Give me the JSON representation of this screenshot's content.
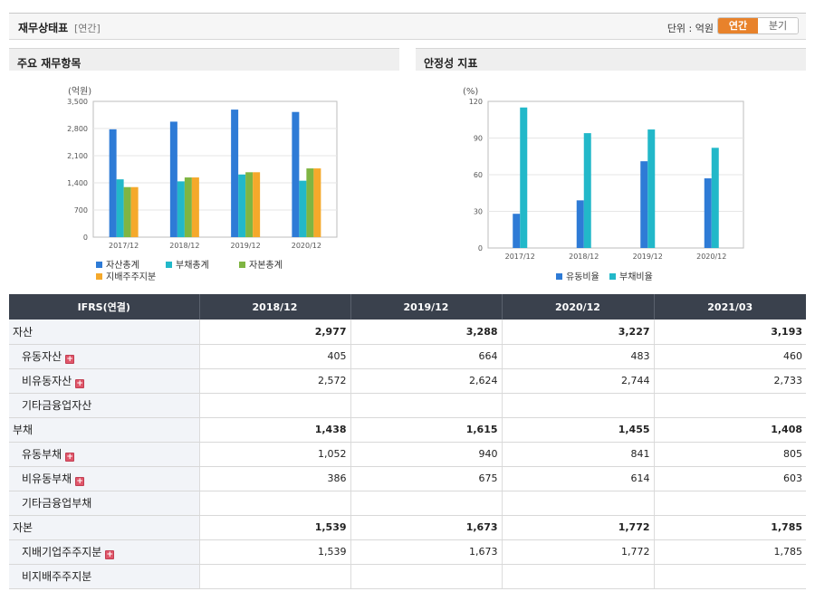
{
  "header": {
    "title": "재무상태표",
    "period_tag": "[연간]",
    "unit_label": "단위 : 억원",
    "toggle": {
      "annual": "연간",
      "quarter": "분기"
    }
  },
  "panels": {
    "left_title": "주요 재무항목",
    "right_title": "안정성 지표"
  },
  "colors": {
    "assets": "#2e7bd6",
    "liabilities": "#22b8c9",
    "equity": "#7fb542",
    "controlling": "#f5a92b",
    "header_bg": "#3a414d",
    "accent": "#e8822b"
  },
  "chart_data": [
    {
      "type": "bar",
      "title": "주요 재무항목",
      "ylabel": "(억원)",
      "categories": [
        "2017/12",
        "2018/12",
        "2019/12",
        "2020/12"
      ],
      "ylim": [
        0,
        3500
      ],
      "yticks": [
        0,
        700,
        1400,
        2100,
        2800,
        3500
      ],
      "ytick_labels": [
        "0",
        "700",
        "1,400",
        "2,100",
        "2,800",
        "3,500"
      ],
      "grid": true,
      "legend_position": "bottom",
      "series": [
        {
          "name": "자산총계",
          "color": "#2e7bd6",
          "values": [
            2780,
            2977,
            3288,
            3227
          ]
        },
        {
          "name": "부채총계",
          "color": "#22b8c9",
          "values": [
            1490,
            1438,
            1615,
            1455
          ]
        },
        {
          "name": "자본총계",
          "color": "#7fb542",
          "values": [
            1290,
            1539,
            1673,
            1772
          ]
        },
        {
          "name": "지배주주지분",
          "color": "#f5a92b",
          "values": [
            1290,
            1539,
            1673,
            1772
          ]
        }
      ]
    },
    {
      "type": "bar",
      "title": "안정성 지표",
      "ylabel": "(%)",
      "categories": [
        "2017/12",
        "2018/12",
        "2019/12",
        "2020/12"
      ],
      "ylim": [
        0,
        120
      ],
      "yticks": [
        0,
        30,
        60,
        90,
        120
      ],
      "ytick_labels": [
        "0",
        "30",
        "60",
        "90",
        "120"
      ],
      "grid": true,
      "legend_position": "bottom",
      "series": [
        {
          "name": "유동비율",
          "color": "#2e7bd6",
          "values": [
            28,
            39,
            71,
            57
          ]
        },
        {
          "name": "부채비율",
          "color": "#22b8c9",
          "values": [
            115,
            94,
            97,
            82
          ]
        }
      ]
    }
  ],
  "table": {
    "headers": [
      "IFRS(연결)",
      "2018/12",
      "2019/12",
      "2020/12",
      "2021/03"
    ],
    "rows": [
      {
        "label": "자산",
        "major": true,
        "expand": false,
        "values": [
          "2,977",
          "3,288",
          "3,227",
          "3,193"
        ]
      },
      {
        "label": "유동자산",
        "major": false,
        "expand": true,
        "values": [
          "405",
          "664",
          "483",
          "460"
        ]
      },
      {
        "label": "비유동자산",
        "major": false,
        "expand": true,
        "values": [
          "2,572",
          "2,624",
          "2,744",
          "2,733"
        ]
      },
      {
        "label": "기타금융업자산",
        "major": false,
        "expand": false,
        "values": [
          "",
          "",
          "",
          ""
        ]
      },
      {
        "label": "부채",
        "major": true,
        "expand": false,
        "values": [
          "1,438",
          "1,615",
          "1,455",
          "1,408"
        ]
      },
      {
        "label": "유동부채",
        "major": false,
        "expand": true,
        "values": [
          "1,052",
          "940",
          "841",
          "805"
        ]
      },
      {
        "label": "비유동부채",
        "major": false,
        "expand": true,
        "values": [
          "386",
          "675",
          "614",
          "603"
        ]
      },
      {
        "label": "기타금융업부채",
        "major": false,
        "expand": false,
        "values": [
          "",
          "",
          "",
          ""
        ]
      },
      {
        "label": "자본",
        "major": true,
        "expand": false,
        "values": [
          "1,539",
          "1,673",
          "1,772",
          "1,785"
        ]
      },
      {
        "label": "지배기업주주지분",
        "major": false,
        "expand": true,
        "values": [
          "1,539",
          "1,673",
          "1,772",
          "1,785"
        ]
      },
      {
        "label": "비지배주주지분",
        "major": false,
        "expand": false,
        "values": [
          "",
          "",
          "",
          ""
        ]
      }
    ]
  }
}
